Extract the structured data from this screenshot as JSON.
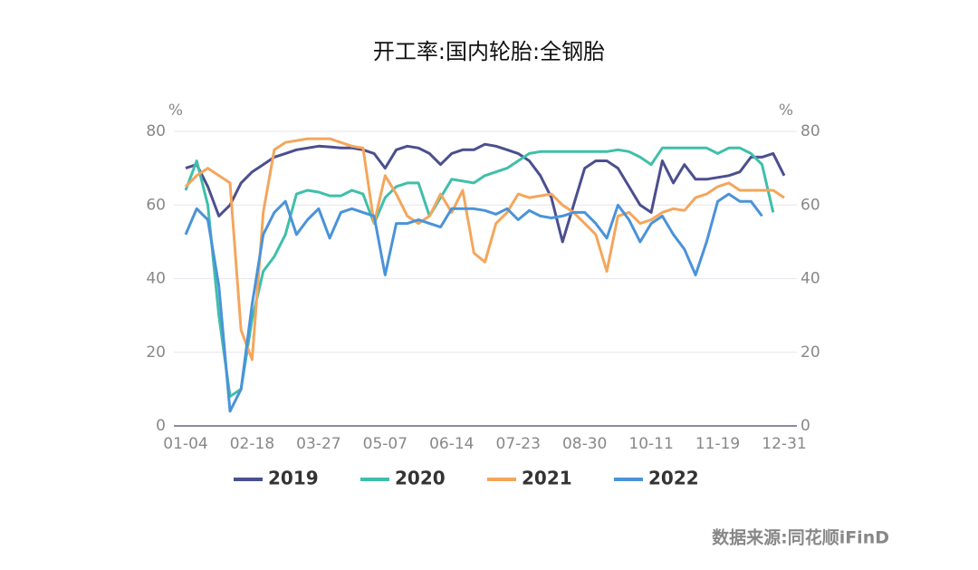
{
  "chart_data": {
    "type": "line",
    "title": "开工率:国内轮胎:全钢胎",
    "y_unit": "%",
    "y2_unit": "%",
    "source": "数据来源:同花顺iFinD",
    "categories": [
      "01-04",
      null,
      null,
      null,
      null,
      null,
      "02-18",
      null,
      null,
      null,
      null,
      null,
      "03-27",
      null,
      null,
      null,
      null,
      null,
      "05-07",
      null,
      null,
      null,
      null,
      null,
      "06-14",
      null,
      null,
      null,
      null,
      null,
      "07-23",
      null,
      null,
      null,
      null,
      null,
      "08-30",
      null,
      null,
      null,
      null,
      null,
      "10-11",
      null,
      null,
      null,
      null,
      null,
      "11-19",
      null,
      null,
      null,
      null,
      null,
      "12-31"
    ],
    "series": [
      {
        "name": "2019",
        "color": "#4b4f8f",
        "values": [
          70,
          71,
          65,
          57,
          60,
          66,
          69,
          71,
          73,
          74,
          75,
          75.5,
          76,
          75.8,
          75.5,
          75.5,
          75,
          74,
          70,
          75,
          76,
          75.5,
          74,
          71,
          74,
          75,
          75,
          76.5,
          76,
          75,
          74,
          72,
          68,
          62,
          50,
          60,
          70,
          72,
          72,
          70,
          65,
          60,
          58,
          72,
          66,
          71,
          67,
          67,
          67.5,
          68,
          69,
          73,
          73,
          74,
          68
        ]
      },
      {
        "name": "2020",
        "color": "#3fbfaa",
        "values": [
          64,
          72,
          60,
          30,
          8,
          10,
          29,
          42,
          46,
          52,
          63,
          64,
          63.5,
          62.5,
          62.5,
          64,
          63,
          55,
          62,
          65,
          66,
          66,
          57,
          62,
          67,
          66.5,
          66,
          68,
          69,
          70,
          72,
          74,
          74.5,
          74.5,
          74.5,
          74.5,
          74.5,
          74.5,
          74.5,
          75,
          74.5,
          73,
          71,
          75.5,
          75.5,
          75.5,
          75.5,
          75.5,
          74,
          75.5,
          75.5,
          74,
          71,
          58,
          null
        ]
      },
      {
        "name": "2021",
        "color": "#f4a65c",
        "values": [
          65,
          68,
          70,
          68,
          66,
          26,
          18,
          58,
          75,
          77,
          77.5,
          78,
          78,
          78,
          77,
          76,
          75.5,
          55,
          68,
          63,
          57,
          55,
          57,
          63,
          58,
          64,
          47,
          44.5,
          55,
          58,
          63,
          62,
          62.5,
          63,
          60,
          58,
          55,
          52,
          42,
          57,
          58,
          55,
          56,
          58,
          59,
          58.5,
          62,
          63,
          65,
          66,
          64,
          64,
          64,
          64,
          62
        ]
      },
      {
        "name": "2022",
        "color": "#4a93d9",
        "values": [
          52,
          59,
          56,
          38,
          4,
          10,
          33,
          52,
          58,
          61,
          52,
          56,
          59,
          51,
          58,
          59,
          58,
          57,
          41,
          55,
          55,
          56,
          55,
          54,
          59,
          59,
          59,
          58.5,
          57.5,
          59,
          56,
          58.5,
          57,
          56.5,
          57,
          58,
          58,
          55,
          51,
          60,
          56,
          50,
          55,
          57,
          52,
          48,
          41,
          50,
          61,
          63,
          61,
          61,
          57,
          null,
          null
        ]
      }
    ],
    "ylim": [
      0,
      80
    ],
    "yticks": [
      0,
      20,
      40,
      60,
      80
    ],
    "y2lim": [
      0,
      80
    ],
    "y2ticks": [
      0,
      20,
      40,
      60,
      80
    ],
    "grid": true
  }
}
